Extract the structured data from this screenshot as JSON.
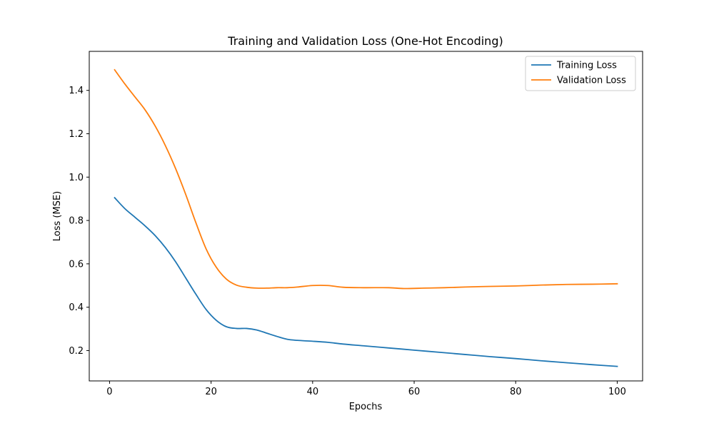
{
  "chart_data": {
    "type": "line",
    "title": "Training and Validation Loss (One-Hot Encoding)",
    "xlabel": "Epochs",
    "ylabel": "Loss (MSE)",
    "xlim": [
      -4,
      105
    ],
    "ylim": [
      0.06,
      1.58
    ],
    "xticks": [
      0,
      20,
      40,
      60,
      80,
      100
    ],
    "yticks": [
      0.2,
      0.4,
      0.6,
      0.8,
      1.0,
      1.2,
      1.4
    ],
    "grid": false,
    "legend_position": "top-right",
    "series": [
      {
        "name": "Training Loss",
        "color": "#1f77b4",
        "x": [
          1,
          3,
          5,
          7,
          9,
          11,
          13,
          15,
          17,
          19,
          21,
          23,
          25,
          27,
          29,
          31,
          33,
          35,
          37,
          40,
          43,
          46,
          50,
          55,
          60,
          65,
          70,
          75,
          80,
          85,
          90,
          95,
          100
        ],
        "y": [
          0.905,
          0.855,
          0.815,
          0.775,
          0.73,
          0.675,
          0.61,
          0.535,
          0.46,
          0.39,
          0.34,
          0.31,
          0.302,
          0.302,
          0.295,
          0.28,
          0.265,
          0.252,
          0.247,
          0.243,
          0.238,
          0.23,
          0.222,
          0.212,
          0.202,
          0.192,
          0.182,
          0.172,
          0.163,
          0.153,
          0.144,
          0.135,
          0.127
        ]
      },
      {
        "name": "Validation Loss",
        "color": "#ff7f0e",
        "x": [
          1,
          3,
          5,
          7,
          9,
          11,
          13,
          15,
          17,
          19,
          21,
          23,
          25,
          27,
          29,
          31,
          33,
          35,
          37,
          40,
          43,
          46,
          50,
          55,
          58,
          62,
          66,
          70,
          75,
          80,
          85,
          90,
          95,
          100
        ],
        "y": [
          1.495,
          1.43,
          1.37,
          1.31,
          1.235,
          1.145,
          1.04,
          0.92,
          0.79,
          0.67,
          0.585,
          0.53,
          0.502,
          0.492,
          0.488,
          0.488,
          0.49,
          0.49,
          0.493,
          0.5,
          0.5,
          0.492,
          0.49,
          0.49,
          0.486,
          0.488,
          0.49,
          0.493,
          0.496,
          0.498,
          0.502,
          0.505,
          0.506,
          0.508
        ]
      }
    ]
  }
}
